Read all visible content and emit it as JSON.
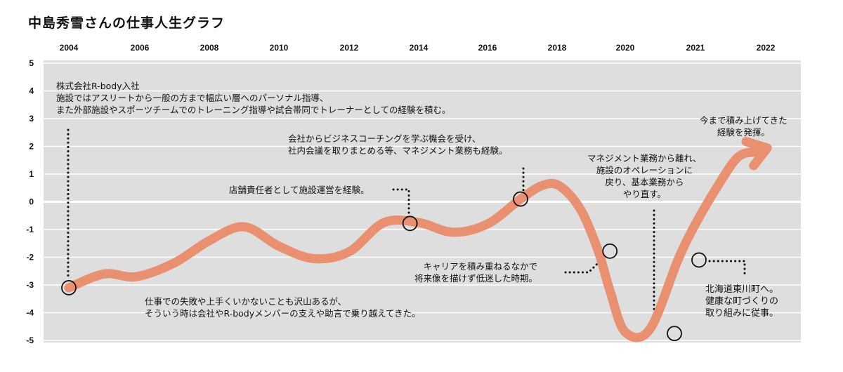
{
  "chart_data": {
    "type": "line",
    "title": "中島秀雪さんの仕事人生グラフ",
    "x_tick_labels": [
      "2004",
      "2006",
      "2008",
      "2010",
      "2012",
      "2014",
      "2016",
      "2018",
      "2020",
      "2021",
      "2022"
    ],
    "y_ticks": [
      5,
      4,
      3,
      2,
      1,
      0,
      -1,
      -2,
      -3,
      -4,
      -5
    ],
    "ylim": [
      -5,
      5
    ],
    "grid": "horizontal",
    "colors": {
      "line": "#E8906F",
      "plot_bg": "#DEDEDE",
      "grid": "#FFFFFF",
      "marker_fill": "#ffffff",
      "marker_stroke": "#111111"
    },
    "curve": {
      "x": [
        2004,
        2005,
        2005.9,
        2007,
        2008,
        2009,
        2010,
        2011,
        2012,
        2013,
        2014,
        2015,
        2016,
        2016.95,
        2017.6,
        2018.1,
        2018.7,
        2019.2,
        2019.55,
        2020,
        2020.35,
        2020.75,
        2021,
        2021.3,
        2021.6,
        2021.85
      ],
      "y": [
        -3.1,
        -2.6,
        -2.7,
        -2.2,
        -1.4,
        -0.9,
        -1.6,
        -2.05,
        -1.8,
        -0.75,
        -0.75,
        -1.1,
        -0.8,
        0.1,
        0.6,
        0.55,
        -0.3,
        -1.75,
        -3.2,
        -4.7,
        -4.6,
        -2.1,
        -0.8,
        0.5,
        1.6,
        1.8
      ]
    },
    "milestones": [
      {
        "x": 2004.0,
        "y": -3.1
      },
      {
        "x": 2013.75,
        "y": -0.78
      },
      {
        "x": 2016.95,
        "y": 0.1
      },
      {
        "x": 2019.55,
        "y": -1.78
      },
      {
        "x": 2020.7,
        "y": -4.75
      },
      {
        "x": 2021.05,
        "y": -2.1
      }
    ],
    "annotations": [
      {
        "id": "a1",
        "lines": [
          "株式会社R-body入社",
          "施設ではアスリートから一般の方まで幅広い層へのパーソナル指導、",
          "また外部施設やスポーツチームでのトレーニング指導や試合帯同でトレーナーとしての経験を積む。"
        ]
      },
      {
        "id": "a2",
        "lines": [
          "仕事での失敗や上手くいかないことも沢山あるが、",
          "そういう時は会社やR-bodyメンバーの支えや助言で乗り越えてきた。"
        ]
      },
      {
        "id": "a3",
        "lines": [
          "店舗責任者として施設運営を経験。"
        ]
      },
      {
        "id": "a4",
        "lines": [
          "会社からビジネスコーチングを学ぶ機会を受け、",
          "社内会議を取りまとめる等、マネジメント業務も経験。"
        ]
      },
      {
        "id": "a5",
        "lines": [
          "キャリアを積み重ねるなかで",
          "将来像を描けず低迷した時期。"
        ]
      },
      {
        "id": "a6",
        "lines": [
          "マネジメント業務から離れ、",
          "施設のオペレーションに",
          "戻り、基本業務から",
          "やり直す。"
        ]
      },
      {
        "id": "a7",
        "lines": [
          "今まで積み上げてきた",
          "経験を発揮。"
        ]
      },
      {
        "id": "a8",
        "lines": [
          "北海道東川町へ。",
          "健康な町づくりの",
          "取り組みに従事。"
        ]
      }
    ]
  }
}
